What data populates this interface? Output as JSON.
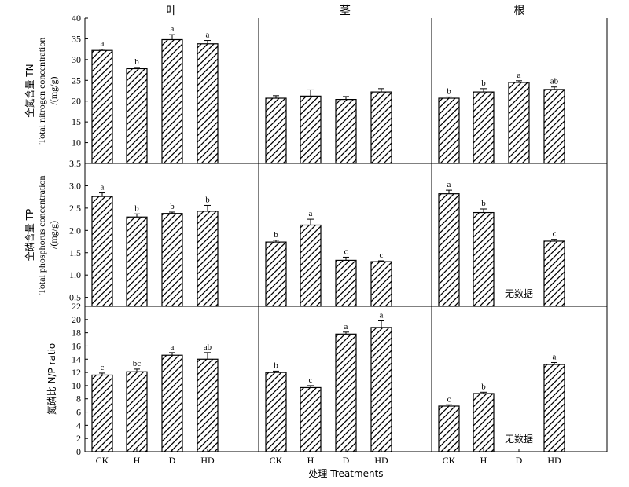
{
  "chart_data": {
    "type": "bar",
    "categories": [
      "CK",
      "H",
      "D",
      "HD"
    ],
    "columns": [
      "叶",
      "茎",
      "根"
    ],
    "xlabel": "处理 Treatments",
    "no_data_label": "无数据",
    "rows": [
      {
        "ylabel_cn": "全氮含量 TN",
        "ylabel_en": "Total nitrogen concentration",
        "ylabel_unit": "/(mg/g)",
        "ylim": [
          5,
          40
        ],
        "ticks": [
          {
            "v": 10,
            "t": "10"
          },
          {
            "v": 15,
            "t": "15"
          },
          {
            "v": 20,
            "t": "20"
          },
          {
            "v": 25,
            "t": "25"
          },
          {
            "v": 30,
            "t": "30"
          },
          {
            "v": 35,
            "t": "35"
          },
          {
            "v": 40,
            "t": "40"
          }
        ],
        "series": [
          {
            "values": [
              32.2,
              27.8,
              34.8,
              33.8
            ],
            "errors": [
              0.3,
              0.3,
              1.2,
              0.8
            ],
            "letters": [
              "a",
              "b",
              "a",
              "a"
            ]
          },
          {
            "values": [
              20.7,
              21.2,
              20.4,
              22.2
            ],
            "errors": [
              0.6,
              1.5,
              0.7,
              0.8
            ],
            "letters": [
              "",
              "",
              "",
              ""
            ]
          },
          {
            "values": [
              20.7,
              22.2,
              24.5,
              22.8
            ],
            "errors": [
              0.3,
              0.8,
              0.4,
              0.6
            ],
            "letters": [
              "b",
              "b",
              "a",
              "ab"
            ]
          }
        ]
      },
      {
        "ylabel_cn": "全磷含量 TP",
        "ylabel_en": "Total phosphorus concentration",
        "ylabel_unit": "/(mg/g)",
        "ylim": [
          0.3,
          3.5
        ],
        "ticks": [
          {
            "v": 0.5,
            "t": "0.5"
          },
          {
            "v": 1.0,
            "t": "1.0"
          },
          {
            "v": 1.5,
            "t": "1.5"
          },
          {
            "v": 2.0,
            "t": "2.0"
          },
          {
            "v": 2.5,
            "t": "2.5"
          },
          {
            "v": 3.0,
            "t": "3.0"
          },
          {
            "v": 3.5,
            "t": "3.5"
          }
        ],
        "series": [
          {
            "values": [
              2.76,
              2.3,
              2.38,
              2.43
            ],
            "errors": [
              0.08,
              0.07,
              0.03,
              0.13
            ],
            "letters": [
              "a",
              "b",
              "b",
              "b"
            ]
          },
          {
            "values": [
              1.74,
              2.12,
              1.33,
              1.3
            ],
            "errors": [
              0.04,
              0.13,
              0.07,
              0.02
            ],
            "letters": [
              "b",
              "a",
              "c",
              "c"
            ]
          },
          {
            "values": [
              2.82,
              2.4,
              null,
              1.76
            ],
            "errors": [
              0.08,
              0.08,
              null,
              0.04
            ],
            "letters": [
              "a",
              "b",
              "",
              "c"
            ]
          }
        ]
      },
      {
        "ylabel_cn": "氮磷比 N/P ratio",
        "ylabel_en": "",
        "ylabel_unit": "",
        "ylim": [
          0,
          22
        ],
        "ticks": [
          {
            "v": 0,
            "t": "0"
          },
          {
            "v": 2,
            "t": "2"
          },
          {
            "v": 4,
            "t": "4"
          },
          {
            "v": 6,
            "t": "6"
          },
          {
            "v": 8,
            "t": "8"
          },
          {
            "v": 10,
            "t": "10"
          },
          {
            "v": 12,
            "t": "12"
          },
          {
            "v": 14,
            "t": "14"
          },
          {
            "v": 16,
            "t": "16"
          },
          {
            "v": 18,
            "t": "18"
          },
          {
            "v": 20,
            "t": "20"
          },
          {
            "v": 22,
            "t": "22"
          }
        ],
        "series": [
          {
            "values": [
              11.6,
              12.1,
              14.6,
              14.0
            ],
            "errors": [
              0.3,
              0.4,
              0.4,
              1.0
            ],
            "letters": [
              "c",
              "bc",
              "a",
              "ab"
            ]
          },
          {
            "values": [
              12.0,
              9.7,
              17.8,
              18.8
            ],
            "errors": [
              0.2,
              0.3,
              0.3,
              1.0
            ],
            "letters": [
              "b",
              "c",
              "a",
              "a"
            ]
          },
          {
            "values": [
              6.9,
              8.8,
              null,
              13.2
            ],
            "errors": [
              0.2,
              0.2,
              null,
              0.3
            ],
            "letters": [
              "c",
              "b",
              "",
              "a"
            ]
          }
        ]
      }
    ]
  }
}
